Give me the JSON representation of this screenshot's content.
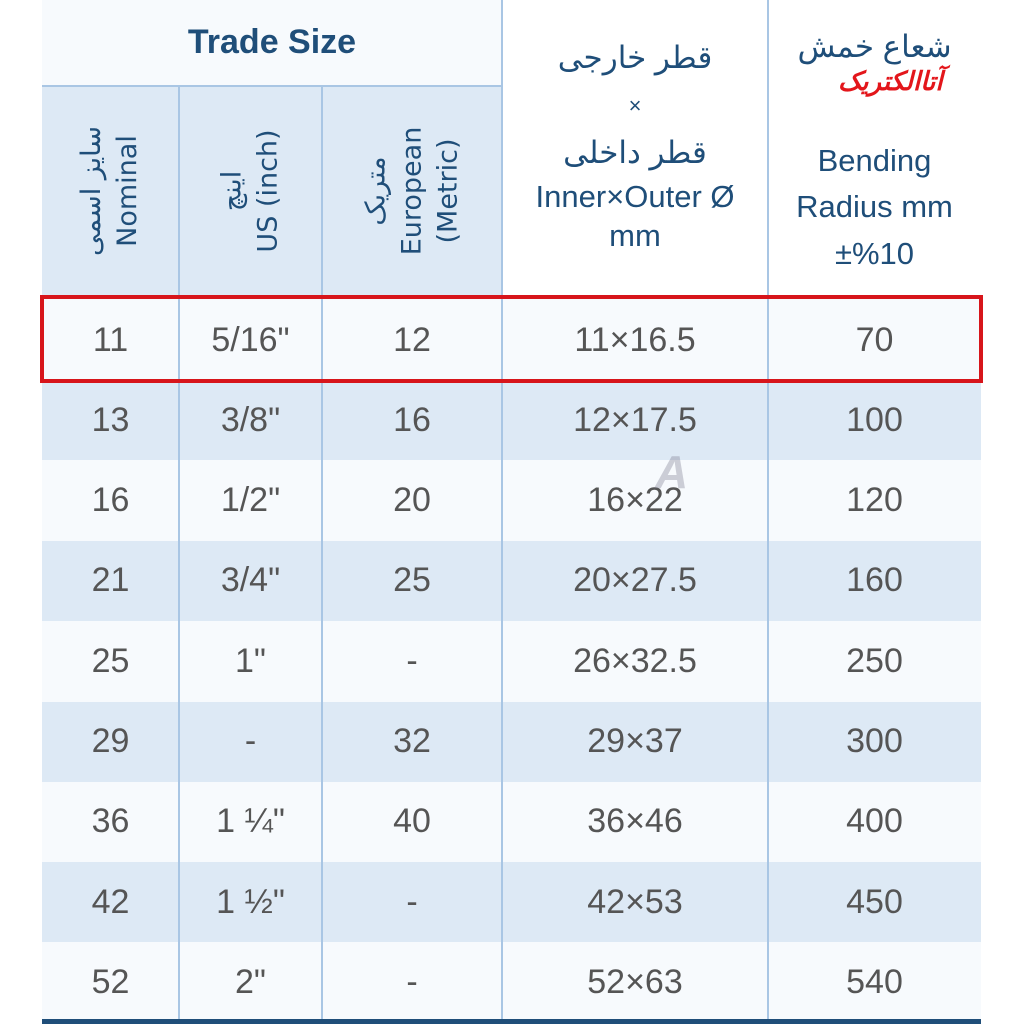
{
  "header": {
    "trade_size": "Trade Size",
    "nominal_fa": "سایز اسمی",
    "nominal_en": "Nominal",
    "us_fa": "اینچ",
    "us_en": "US (inch)",
    "metric_fa": "متریک",
    "metric_en1": "European",
    "metric_en2": "(Metric)",
    "diam_fa1": "قطر خارجی",
    "diam_x": "×",
    "diam_fa2": "قطر داخلی",
    "diam_en1": "Inner×Outer Ø",
    "diam_en2": "mm",
    "bend_fa": "شعاع خمش",
    "bend_en1": "Bending",
    "bend_en2": "Radius mm",
    "bend_en3": "±%10"
  },
  "logo_text": "آتاالکتریک",
  "watermark": "A",
  "highlight_color": "#d7151b",
  "rows": [
    [
      "11",
      "5/16\"",
      "12",
      "11×16.5",
      "70"
    ],
    [
      "13",
      "3/8\"",
      "16",
      "12×17.5",
      "100"
    ],
    [
      "16",
      "1/2\"",
      "20",
      "16×22",
      "120"
    ],
    [
      "21",
      "3/4\"",
      "25",
      "20×27.5",
      "160"
    ],
    [
      "25",
      "1\"",
      "-",
      "26×32.5",
      "250"
    ],
    [
      "29",
      "-",
      "32",
      "29×37",
      "300"
    ],
    [
      "36",
      "1 ¼\"",
      "40",
      "36×46",
      "400"
    ],
    [
      "42",
      "1 ½\"",
      "-",
      "42×53",
      "450"
    ],
    [
      "52",
      "2\"",
      "-",
      "52×63",
      "540"
    ]
  ]
}
